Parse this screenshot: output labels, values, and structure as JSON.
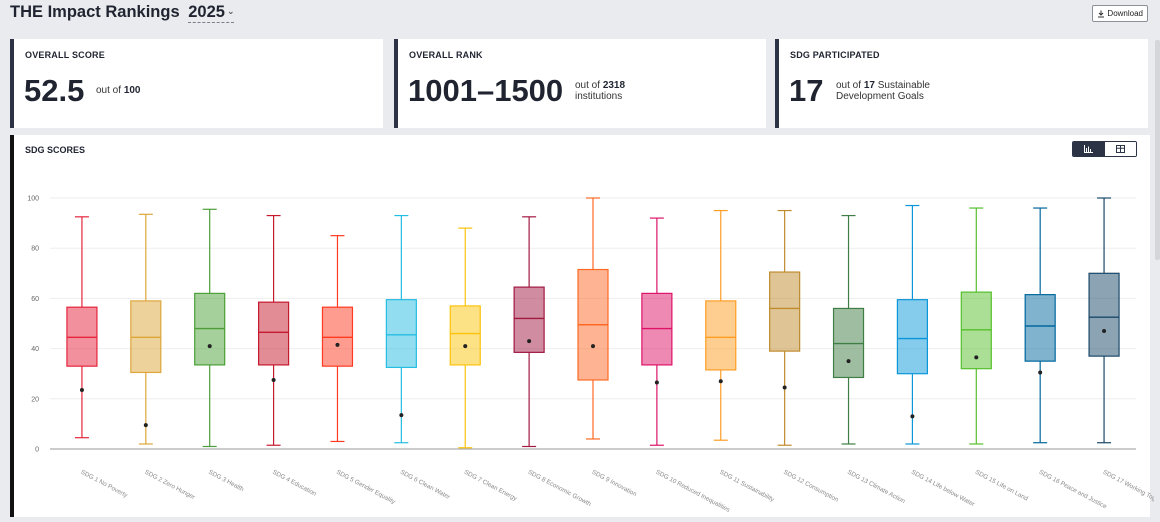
{
  "header": {
    "title": "THE Impact Rankings",
    "year": "2025",
    "download_label": "Download"
  },
  "cards": {
    "overall_score": {
      "label": "OVERALL SCORE",
      "value": "52.5",
      "desc_prefix": "out of",
      "desc_bold": "100"
    },
    "overall_rank": {
      "label": "OVERALL RANK",
      "value": "1001–1500",
      "desc_prefix": "out of",
      "desc_bold": "2318",
      "desc_line2": "institutions"
    },
    "sdg_participated": {
      "label": "SDG PARTICIPATED",
      "value": "17",
      "desc_prefix": "out of",
      "desc_bold": "17",
      "desc_suffix": "Sustainable",
      "desc_line2": "Development Goals"
    }
  },
  "panel": {
    "label": "SDG SCORES",
    "toggle_chart_icon": "bar-chart-icon",
    "toggle_table_icon": "table-icon"
  },
  "chart_data": {
    "type": "boxplot",
    "title": "",
    "xlabel": "",
    "ylabel": "",
    "ylim": [
      0,
      100
    ],
    "yticks": [
      0,
      20,
      40,
      60,
      80,
      100
    ],
    "grid": true,
    "categories": [
      "SDG 1 No Poverty",
      "SDG 2 Zero Hunger",
      "SDG 3 Health",
      "SDG 4 Education",
      "SDG 5 Gender Equality",
      "SDG 6 Clean Water",
      "SDG 7 Clean Energy",
      "SDG 8 Economic Growth",
      "SDG 9 Innovation",
      "SDG 10 Reduced Inequalities",
      "SDG 11 Sustainability",
      "SDG 12 Consumption",
      "SDG 13 Climate Action",
      "SDG 14 Life below Water",
      "SDG 15 Life on Land",
      "SDG 16 Peace and Justice",
      "SDG 17 Working Together"
    ],
    "colors": [
      "#e5243b",
      "#dda63a",
      "#4c9f38",
      "#c5192d",
      "#ff3a21",
      "#26bde2",
      "#fcc30b",
      "#a21942",
      "#fd6925",
      "#dd1367",
      "#fd9d24",
      "#bf8b2e",
      "#3f7e44",
      "#0a97d9",
      "#56c02b",
      "#00689d",
      "#19486a"
    ],
    "boxes": [
      {
        "min": 4.5,
        "q1": 33,
        "median": 44.5,
        "q3": 56.5,
        "max": 92.5,
        "score": 23.5
      },
      {
        "min": 2,
        "q1": 30.5,
        "median": 44.5,
        "q3": 59,
        "max": 93.5,
        "score": 9.5
      },
      {
        "min": 1,
        "q1": 33.5,
        "median": 48,
        "q3": 62,
        "max": 95.5,
        "score": 41
      },
      {
        "min": 1.5,
        "q1": 33.5,
        "median": 46.5,
        "q3": 58.5,
        "max": 93,
        "score": 27.5
      },
      {
        "min": 3,
        "q1": 33,
        "median": 44.5,
        "q3": 56.5,
        "max": 85,
        "score": 41.5
      },
      {
        "min": 2.5,
        "q1": 32.5,
        "median": 45.5,
        "q3": 59.5,
        "max": 93,
        "score": 13.5
      },
      {
        "min": 0.5,
        "q1": 33.5,
        "median": 46,
        "q3": 57,
        "max": 88,
        "score": 41
      },
      {
        "min": 1,
        "q1": 38.5,
        "median": 52,
        "q3": 64.5,
        "max": 92.5,
        "score": 43
      },
      {
        "min": 4,
        "q1": 27.5,
        "median": 49.5,
        "q3": 71.5,
        "max": 100,
        "score": 41
      },
      {
        "min": 1.5,
        "q1": 33.5,
        "median": 48,
        "q3": 62,
        "max": 92,
        "score": 26.5
      },
      {
        "min": 3.5,
        "q1": 31.5,
        "median": 44.5,
        "q3": 59,
        "max": 95,
        "score": 27
      },
      {
        "min": 1.5,
        "q1": 39,
        "median": 56,
        "q3": 70.5,
        "max": 95,
        "score": 24.5
      },
      {
        "min": 2,
        "q1": 28.5,
        "median": 42,
        "q3": 56,
        "max": 93,
        "score": 35
      },
      {
        "min": 2,
        "q1": 30,
        "median": 44,
        "q3": 59.5,
        "max": 97,
        "score": 13
      },
      {
        "min": 2,
        "q1": 32,
        "median": 47.5,
        "q3": 62.5,
        "max": 96,
        "score": 36.5
      },
      {
        "min": 2.5,
        "q1": 35,
        "median": 49,
        "q3": 61.5,
        "max": 96,
        "score": 30.5
      },
      {
        "min": 2.5,
        "q1": 37,
        "median": 52.5,
        "q3": 70,
        "max": 100,
        "score": 47
      }
    ]
  }
}
